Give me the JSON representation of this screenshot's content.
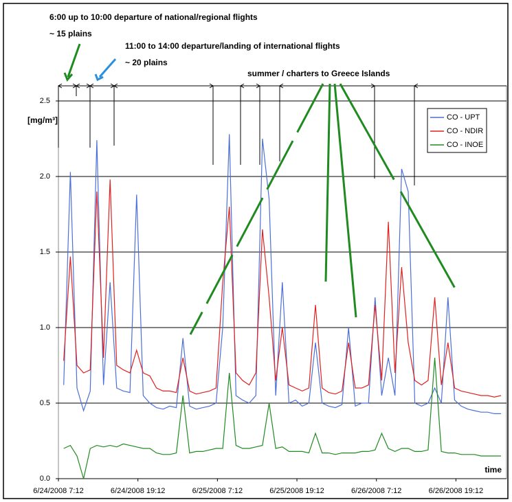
{
  "chart_data": {
    "type": "line",
    "annotations": [
      "6:00 up to 10:00 departure of national/regional flights",
      "~ 15 plains",
      "11:00 to 14:00 departure/landing of international flights",
      "~ 20 plains",
      "summer / charters to Greece Islands"
    ],
    "y_label": "[mg/m³]",
    "x_label": "time",
    "x": [
      "2008-06-24T08:00",
      "2008-06-24T09:00",
      "2008-06-24T10:00",
      "2008-06-24T11:00",
      "2008-06-24T12:00",
      "2008-06-24T13:00",
      "2008-06-24T14:00",
      "2008-06-24T15:00",
      "2008-06-24T16:00",
      "2008-06-24T17:00",
      "2008-06-24T18:00",
      "2008-06-24T19:00",
      "2008-06-24T20:00",
      "2008-06-24T21:00",
      "2008-06-24T22:00",
      "2008-06-24T23:00",
      "2008-06-25T00:00",
      "2008-06-25T01:00",
      "2008-06-25T02:00",
      "2008-06-25T03:00",
      "2008-06-25T04:00",
      "2008-06-25T05:00",
      "2008-06-25T06:00",
      "2008-06-25T07:00",
      "2008-06-25T08:00",
      "2008-06-25T09:00",
      "2008-06-25T10:00",
      "2008-06-25T11:00",
      "2008-06-25T12:00",
      "2008-06-25T13:00",
      "2008-06-25T14:00",
      "2008-06-25T15:00",
      "2008-06-25T16:00",
      "2008-06-25T17:00",
      "2008-06-25T18:00",
      "2008-06-25T19:00",
      "2008-06-25T20:00",
      "2008-06-25T21:00",
      "2008-06-25T22:00",
      "2008-06-25T23:00",
      "2008-06-26T00:00",
      "2008-06-26T01:00",
      "2008-06-26T02:00",
      "2008-06-26T03:00",
      "2008-06-26T04:00",
      "2008-06-26T05:00",
      "2008-06-26T06:00",
      "2008-06-26T07:00",
      "2008-06-26T08:00",
      "2008-06-26T09:00",
      "2008-06-26T10:00",
      "2008-06-26T11:00",
      "2008-06-26T12:00",
      "2008-06-26T13:00",
      "2008-06-26T14:00",
      "2008-06-26T15:00",
      "2008-06-26T16:00",
      "2008-06-26T17:00",
      "2008-06-26T18:00",
      "2008-06-26T19:00",
      "2008-06-26T20:00",
      "2008-06-26T21:00",
      "2008-06-26T22:00",
      "2008-06-26T23:00",
      "2008-06-27T00:00",
      "2008-06-27T01:00",
      "2008-06-27T02:00"
    ],
    "series": [
      {
        "name": "CO - UPT",
        "color": "#4a6fd8",
        "values": [
          0.62,
          2.03,
          0.6,
          0.45,
          0.58,
          2.24,
          0.62,
          1.3,
          0.6,
          0.58,
          0.57,
          1.88,
          0.55,
          0.5,
          0.47,
          0.46,
          0.48,
          0.47,
          0.93,
          0.48,
          0.46,
          0.47,
          0.48,
          0.5,
          1.0,
          2.28,
          0.55,
          0.52,
          0.5,
          0.55,
          2.25,
          1.85,
          0.55,
          1.3,
          0.5,
          0.52,
          0.48,
          0.5,
          0.9,
          0.5,
          0.48,
          0.47,
          0.49,
          1.0,
          0.48,
          0.5,
          0.5,
          1.2,
          0.55,
          0.8,
          0.55,
          2.05,
          1.9,
          0.5,
          0.48,
          0.5,
          0.6,
          0.5,
          1.2,
          0.52,
          0.48,
          0.46,
          0.45,
          0.44,
          0.44,
          0.43,
          0.43
        ]
      },
      {
        "name": "CO - NDIR",
        "color": "#e0201e",
        "values": [
          0.78,
          1.47,
          0.75,
          0.7,
          0.72,
          1.9,
          0.8,
          1.98,
          0.75,
          0.72,
          0.7,
          0.85,
          0.7,
          0.68,
          0.6,
          0.58,
          0.58,
          0.57,
          0.8,
          0.58,
          0.56,
          0.57,
          0.58,
          0.6,
          1.3,
          1.8,
          0.7,
          0.65,
          0.62,
          0.7,
          1.65,
          1.2,
          0.65,
          1.0,
          0.62,
          0.6,
          0.58,
          0.6,
          1.15,
          0.6,
          0.57,
          0.56,
          0.58,
          0.9,
          0.6,
          0.6,
          0.62,
          1.15,
          0.65,
          1.7,
          0.7,
          1.4,
          0.9,
          0.65,
          0.62,
          0.65,
          1.2,
          0.62,
          0.9,
          0.6,
          0.58,
          0.57,
          0.56,
          0.55,
          0.55,
          0.54,
          0.55
        ]
      },
      {
        "name": "CO - INOE",
        "color": "#1f8a1f",
        "values": [
          0.2,
          0.22,
          0.15,
          0.0,
          0.2,
          0.22,
          0.21,
          0.22,
          0.21,
          0.23,
          0.22,
          0.21,
          0.2,
          0.2,
          0.17,
          0.16,
          0.16,
          0.17,
          0.55,
          0.17,
          0.18,
          0.18,
          0.19,
          0.2,
          0.2,
          0.7,
          0.22,
          0.2,
          0.2,
          0.21,
          0.22,
          0.5,
          0.2,
          0.21,
          0.18,
          0.18,
          0.18,
          0.17,
          0.3,
          0.17,
          0.17,
          0.16,
          0.17,
          0.17,
          0.17,
          0.18,
          0.18,
          0.19,
          0.3,
          0.2,
          0.18,
          0.2,
          0.2,
          0.18,
          0.18,
          0.19,
          0.8,
          0.18,
          0.17,
          0.17,
          0.16,
          0.16,
          0.16,
          0.15,
          0.15,
          0.15,
          0.15
        ]
      }
    ],
    "xlim": [
      "2008-06-24T07:12",
      "2008-06-27T02:50"
    ],
    "xticks": [
      {
        "value": "2008-06-24T07:12",
        "label": "6/24/2008 7:12"
      },
      {
        "value": "2008-06-24T19:12",
        "label": "6/24/2008 19:12"
      },
      {
        "value": "2008-06-25T07:12",
        "label": "6/25/2008 7:12"
      },
      {
        "value": "2008-06-25T19:12",
        "label": "6/25/2008 19:12"
      },
      {
        "value": "2008-06-26T07:12",
        "label": "6/26/2008 7:12"
      },
      {
        "value": "2008-06-26T19:12",
        "label": "6/26/2008 19:12"
      }
    ],
    "ylim": [
      0,
      2.6
    ],
    "yticks": [
      {
        "value": 0,
        "label": "0.0"
      },
      0.5,
      {
        "value": 1,
        "label": "1.0"
      },
      1.5,
      {
        "value": 2,
        "label": "2.0"
      },
      2.5
    ],
    "grid": true,
    "legend": "upper right"
  }
}
